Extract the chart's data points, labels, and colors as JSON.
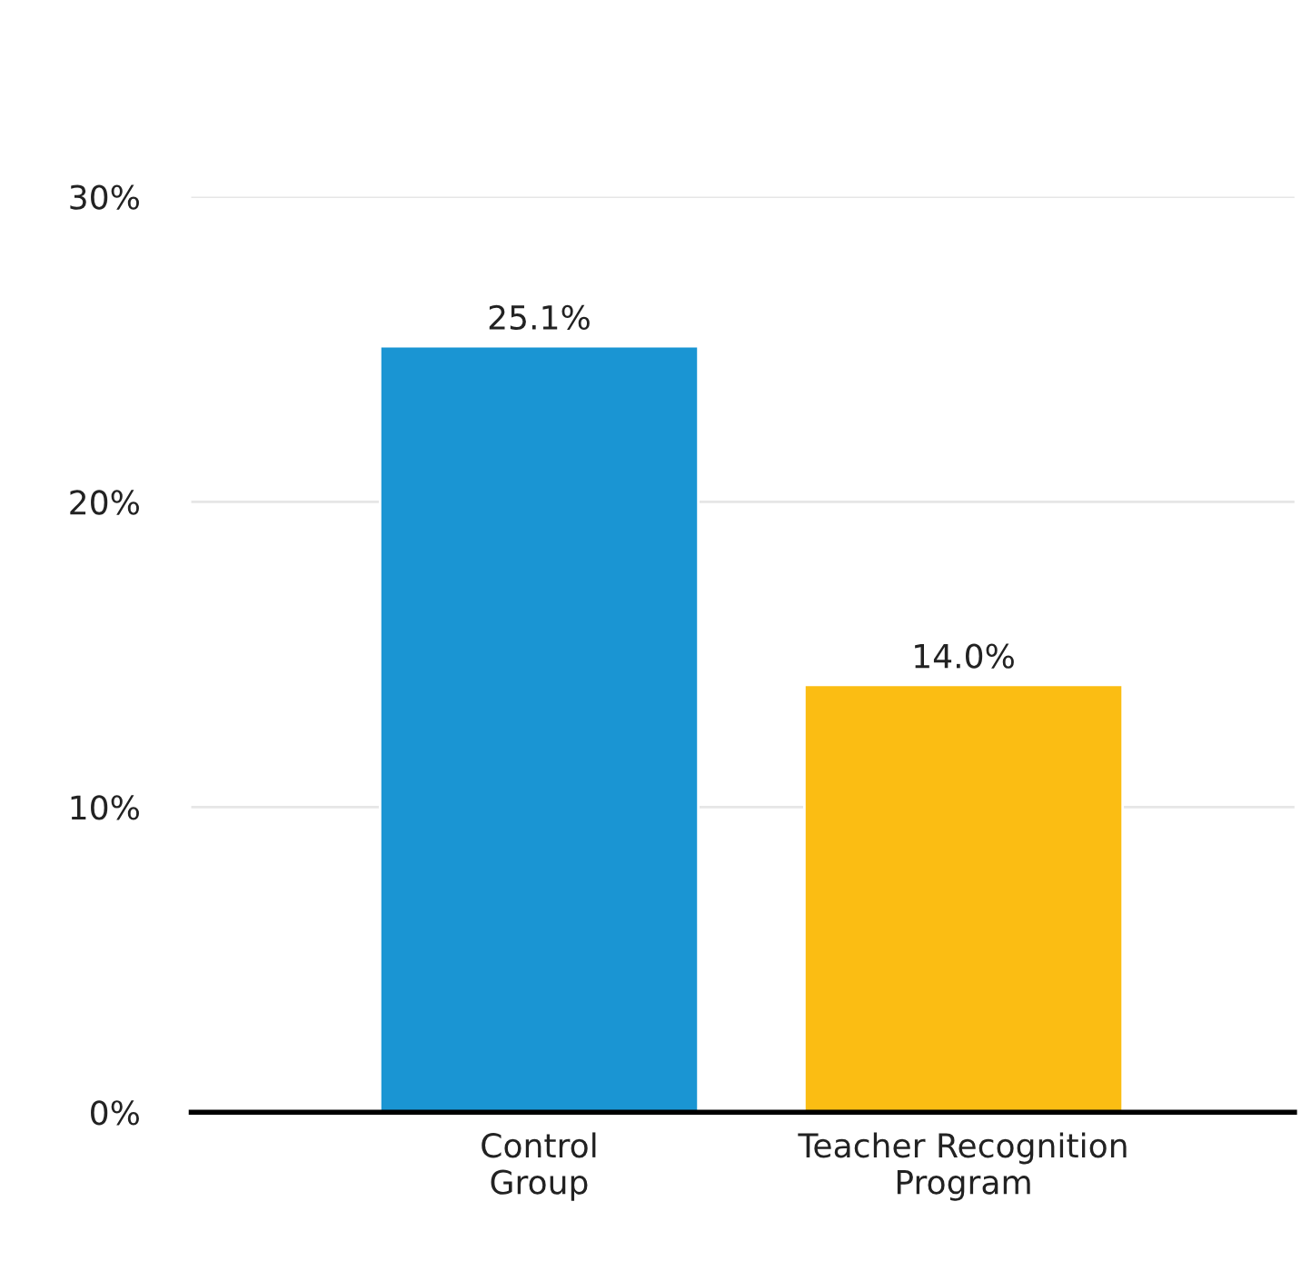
{
  "chart_data": {
    "type": "bar",
    "categories": [
      "Control Group",
      "Teacher Recognition Program"
    ],
    "values": [
      25.1,
      14.0
    ],
    "colors": [
      "#1a95d3",
      "#fbbd13"
    ],
    "value_labels": [
      "25.1%",
      "14.0%"
    ],
    "ylim": [
      0,
      30
    ],
    "yticks": [
      {
        "value": 0,
        "label": "0%"
      },
      {
        "value": 10,
        "label": "10%"
      },
      {
        "value": 20,
        "label": "20%"
      },
      {
        "value": 30,
        "label": "30%"
      }
    ],
    "grid": "y",
    "legend": false
  }
}
